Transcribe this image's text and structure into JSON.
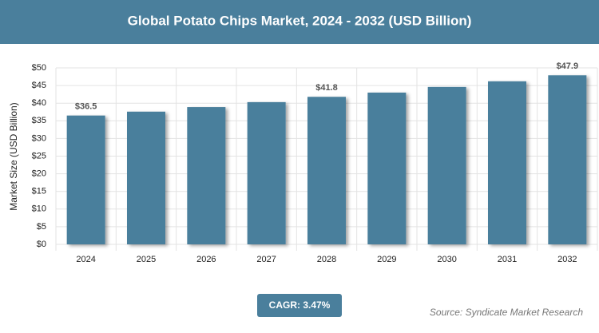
{
  "chart_data": {
    "type": "bar",
    "title": "Global Potato Chips Market, 2024 - 2032 (USD Billion)",
    "y_label": "Market Size (USD Billion)",
    "categories": [
      "2024",
      "2025",
      "2026",
      "2027",
      "2028",
      "2029",
      "2030",
      "2031",
      "2032"
    ],
    "values": [
      36.5,
      37.6,
      38.9,
      40.3,
      41.8,
      43.0,
      44.6,
      46.2,
      47.9
    ],
    "value_labels": [
      "$36.5",
      null,
      null,
      null,
      "$41.8",
      null,
      null,
      null,
      "$47.9"
    ],
    "color": "#4a7f9c",
    "ylim": [
      0,
      50
    ],
    "yticks": [
      {
        "value": 0,
        "label": "$0"
      },
      {
        "value": 5,
        "label": "$5"
      },
      {
        "value": 10,
        "label": "$10"
      },
      {
        "value": 15,
        "label": "$15"
      },
      {
        "value": 20,
        "label": "$20"
      },
      {
        "value": 25,
        "label": "$25"
      },
      {
        "value": 30,
        "label": "$30"
      },
      {
        "value": 35,
        "label": "$35"
      },
      {
        "value": 40,
        "label": "$40"
      },
      {
        "value": 45,
        "label": "$45"
      },
      {
        "value": 50,
        "label": "$50"
      }
    ],
    "grid": true,
    "annotation": "CAGR: 3.47%",
    "source": "Source: Syndicate Market Research"
  }
}
